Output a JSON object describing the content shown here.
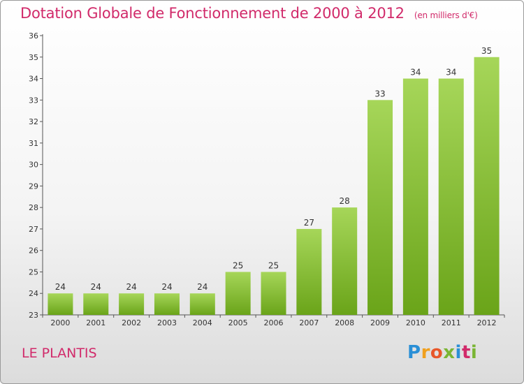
{
  "header": {
    "title": "Dotation Globale de Fonctionnement de 2000 à 2012",
    "unit": "(en milliers d'€)"
  },
  "footer": {
    "commune": "LE PLANTIS",
    "logo_text": "Proxiti"
  },
  "colors": {
    "title": "#d12a6a",
    "bar_top": "#a6d659",
    "bar_bottom": "#6aa419"
  },
  "chart_data": {
    "type": "bar",
    "title": "Dotation Globale de Fonctionnement de 2000 à 2012",
    "subtitle": "(en milliers d'€)",
    "categories": [
      "2000",
      "2001",
      "2002",
      "2003",
      "2004",
      "2005",
      "2006",
      "2007",
      "2008",
      "2009",
      "2010",
      "2011",
      "2012"
    ],
    "values": [
      24,
      24,
      24,
      24,
      24,
      25,
      25,
      27,
      28,
      33,
      34,
      34,
      35
    ],
    "ylim": [
      23,
      36
    ],
    "yticks": [
      23,
      24,
      25,
      26,
      27,
      28,
      29,
      30,
      31,
      32,
      33,
      34,
      35,
      36
    ],
    "xlabel": "",
    "ylabel": "",
    "grid": false,
    "data_labels": true
  }
}
